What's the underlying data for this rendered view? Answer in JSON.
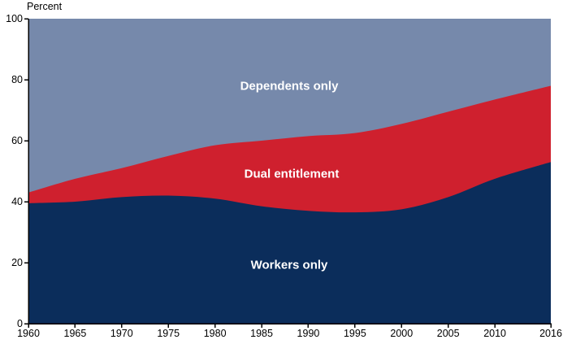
{
  "chart_data": {
    "type": "area",
    "stacked": true,
    "title": "",
    "ylabel": "Percent",
    "xlabel": "",
    "ylim": [
      0,
      100
    ],
    "yticks": [
      0,
      20,
      40,
      60,
      80,
      100
    ],
    "xticks": [
      1960,
      1965,
      1970,
      1975,
      1980,
      1985,
      1990,
      1995,
      2000,
      2005,
      2010,
      2016
    ],
    "x": [
      1960,
      1965,
      1970,
      1975,
      1980,
      1985,
      1990,
      1995,
      2000,
      2005,
      2010,
      2016
    ],
    "series": [
      {
        "name": "Workers only",
        "color": "#0b2d5b",
        "values": [
          39.5,
          40,
          41.5,
          42,
          41,
          38.5,
          37,
          36.5,
          37.5,
          41.5,
          47.5,
          53
        ]
      },
      {
        "name": "Dual entitlement",
        "color": "#cf202e",
        "values": [
          3.5,
          7.5,
          9.5,
          13,
          17.5,
          21.5,
          24.5,
          26,
          28,
          28,
          26,
          25
        ]
      },
      {
        "name": "Dependents only",
        "color": "#7689ab",
        "values": [
          57,
          52.5,
          49,
          45,
          41.5,
          40,
          38.5,
          37.5,
          34.5,
          30.5,
          26.5,
          22
        ]
      }
    ],
    "legend_position": "inline-labels",
    "axis_color": "#000000",
    "label_text_color": "#ffffff",
    "grid": false
  }
}
